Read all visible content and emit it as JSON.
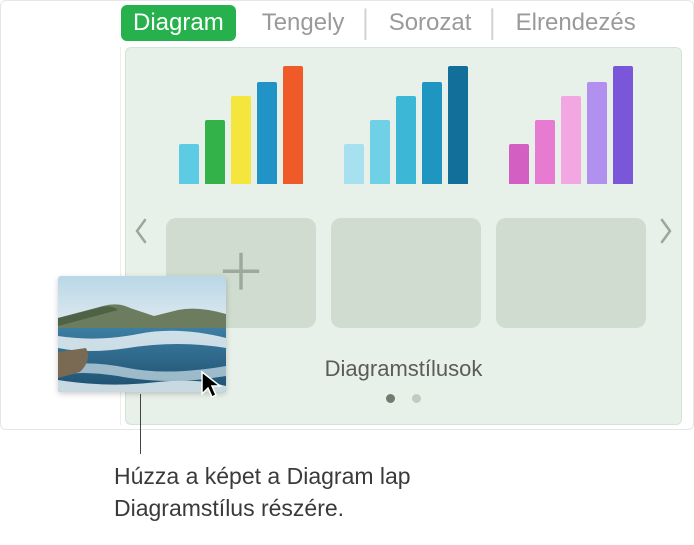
{
  "tabs": {
    "diagram": "Diagram",
    "axis": "Tengely",
    "series": "Sorozat",
    "layout": "Elrendezés"
  },
  "chart_styles_label": "Diagramstílusok",
  "callout": "Húzza a képet a Diagram lap Diagramstílus részére.",
  "charts": [
    {
      "heights": [
        40,
        64,
        88,
        102,
        118
      ],
      "colors": [
        "#5ecbe4",
        "#33b24a",
        "#f5e63e",
        "#2293c7",
        "#ef5a28"
      ]
    },
    {
      "heights": [
        40,
        64,
        88,
        102,
        118
      ],
      "colors": [
        "#a7e1f0",
        "#6fd0e6",
        "#3cb7d6",
        "#1f95c2",
        "#116f9a"
      ]
    },
    {
      "heights": [
        40,
        64,
        88,
        102,
        118
      ],
      "colors": [
        "#d45fc3",
        "#e77bd1",
        "#f2a7e3",
        "#b190ef",
        "#7a56d8"
      ]
    }
  ],
  "panel_bg": "#e7f1e9",
  "placeholder_bg": "#cfdccf",
  "active_tab_bg": "#26b14c",
  "pager": {
    "total": 2,
    "active": 0
  }
}
